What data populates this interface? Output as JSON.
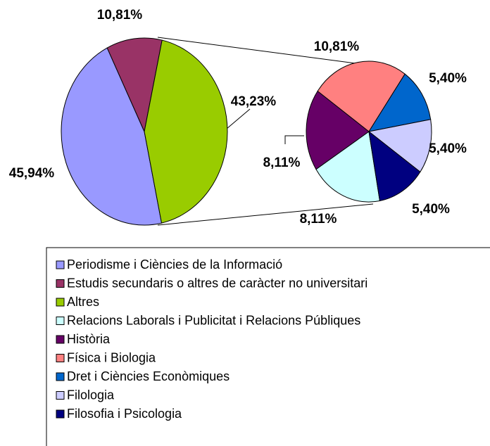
{
  "chart_data": [
    {
      "type": "pie",
      "categories": [
        "Periodisme i Ciències de la Informació",
        "Estudis secundaris o altres de caràcter no universitari",
        "Altres"
      ],
      "values": [
        45.94,
        10.81,
        43.23
      ],
      "value_labels": [
        "45,94%",
        "10,81%",
        "43,23%"
      ],
      "colors": [
        "#9999ff",
        "#993366",
        "#99cc00"
      ]
    },
    {
      "type": "pie",
      "categories": [
        "Relacions Laborals i Publicitat i Relacions Públiques",
        "Història",
        "Física i Biologia",
        "Dret i Ciències Econòmiques",
        "Filologia",
        "Filosofia i Psicologia"
      ],
      "values": [
        8.11,
        8.11,
        10.81,
        5.4,
        5.4,
        5.4
      ],
      "value_labels": [
        "8,11%",
        "8,11%",
        "10,81%",
        "5,40%",
        "5,40%",
        "5,40%"
      ],
      "colors": [
        "#ccffff",
        "#660066",
        "#ff8080",
        "#0066cc",
        "#ccccff",
        "#000080"
      ]
    }
  ]
}
